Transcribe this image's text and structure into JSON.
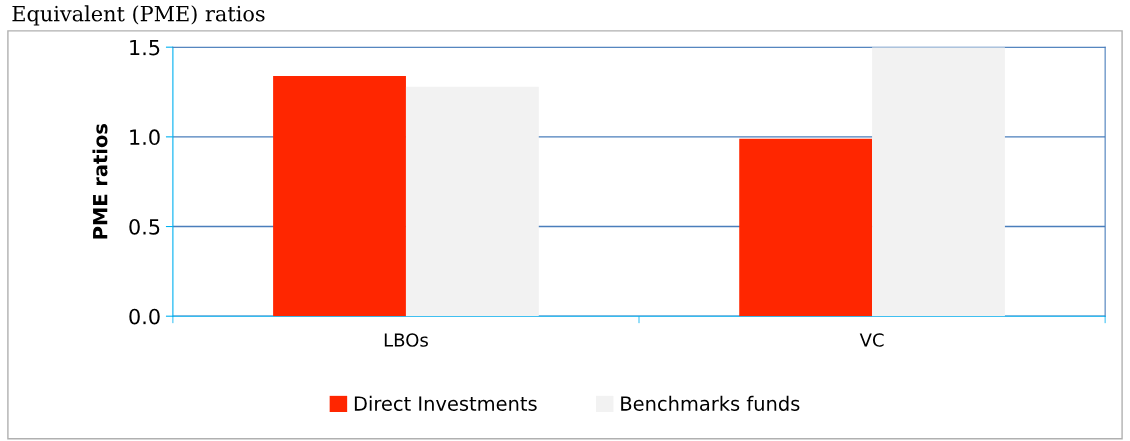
{
  "chart_data": {
    "type": "bar",
    "annotations": [
      "Equivalent (PME) ratios"
    ],
    "ylabel": "PME ratios",
    "categories": [
      "LBOs",
      "VC"
    ],
    "series": [
      {
        "name": "Direct Investments",
        "color": "#ff2600",
        "values": [
          1.34,
          0.99
        ]
      },
      {
        "name": "Benchmarks funds",
        "color": "#f2f2f2",
        "values": [
          1.28,
          1.5
        ]
      }
    ],
    "ylim": [
      0,
      1.5
    ],
    "yticks": [
      {
        "value": 0,
        "label": "0.0"
      },
      {
        "value": 0.5,
        "label": "0.5"
      },
      {
        "value": 1,
        "label": "1.0"
      },
      {
        "value": 1.5,
        "label": "1.5"
      }
    ],
    "grid": "y",
    "legend": "bottom"
  }
}
